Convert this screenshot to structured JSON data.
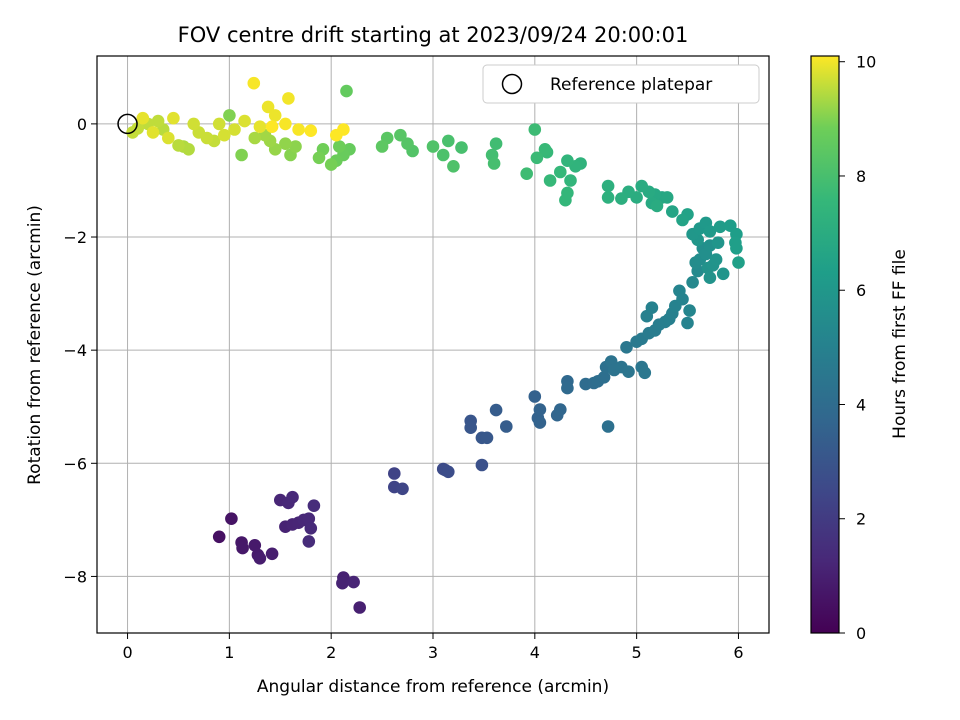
{
  "chart_data": {
    "type": "scatter",
    "title": "FOV centre drift starting at 2023/09/24 20:00:01",
    "xlabel": "Angular distance from reference (arcmin)",
    "ylabel": "Rotation from reference (arcmin)",
    "xlim": [
      -0.3,
      6.3
    ],
    "ylim": [
      -9.0,
      1.2
    ],
    "x_ticks": [
      0,
      1,
      2,
      3,
      4,
      5,
      6
    ],
    "y_ticks": [
      -8,
      -6,
      -4,
      -2,
      0
    ],
    "grid": true,
    "legend_position": "top-right",
    "legend_entries": [
      "Reference platepar"
    ],
    "colorbar": {
      "label": "Hours from first FF file",
      "range": [
        0,
        10.1
      ],
      "ticks": [
        0,
        2,
        4,
        6,
        8,
        10
      ],
      "colormap": "viridis"
    },
    "reference_point": {
      "x": 0,
      "y": 0
    },
    "series": [
      {
        "color_value": "hours",
        "points": [
          [
            0.9,
            -7.3,
            0.5
          ],
          [
            1.02,
            -6.98,
            0.6
          ],
          [
            1.12,
            -7.4,
            0.7
          ],
          [
            1.13,
            -7.5,
            0.75
          ],
          [
            1.25,
            -7.45,
            0.8
          ],
          [
            1.28,
            -7.62,
            0.85
          ],
          [
            1.3,
            -7.68,
            0.9
          ],
          [
            1.42,
            -7.6,
            0.95
          ],
          [
            1.5,
            -6.65,
            1.2
          ],
          [
            1.58,
            -6.7,
            1.25
          ],
          [
            1.62,
            -6.6,
            1.3
          ],
          [
            1.55,
            -7.12,
            1.1
          ],
          [
            1.62,
            -7.08,
            1.15
          ],
          [
            1.68,
            -7.05,
            1.2
          ],
          [
            1.73,
            -7.0,
            1.25
          ],
          [
            1.78,
            -6.98,
            1.3
          ],
          [
            1.8,
            -7.15,
            1.35
          ],
          [
            1.78,
            -7.38,
            1.4
          ],
          [
            1.83,
            -6.75,
            1.45
          ],
          [
            2.12,
            -8.02,
            1.05
          ],
          [
            2.11,
            -8.12,
            1.1
          ],
          [
            2.22,
            -8.1,
            1.15
          ],
          [
            2.28,
            -8.55,
            1.0
          ],
          [
            2.62,
            -6.18,
            2.3
          ],
          [
            2.62,
            -6.42,
            2.35
          ],
          [
            2.7,
            -6.45,
            2.4
          ],
          [
            3.1,
            -6.1,
            2.6
          ],
          [
            3.12,
            -6.12,
            2.65
          ],
          [
            3.15,
            -6.15,
            2.7
          ],
          [
            3.48,
            -6.03,
            2.85
          ],
          [
            3.37,
            -5.25,
            3.0
          ],
          [
            3.37,
            -5.37,
            3.05
          ],
          [
            3.48,
            -5.55,
            3.1
          ],
          [
            3.53,
            -5.55,
            3.15
          ],
          [
            3.62,
            -5.06,
            3.3
          ],
          [
            3.72,
            -5.35,
            3.35
          ],
          [
            4.0,
            -4.82,
            3.5
          ],
          [
            4.03,
            -5.2,
            3.55
          ],
          [
            4.05,
            -5.28,
            3.6
          ],
          [
            4.05,
            -5.05,
            3.6
          ],
          [
            4.22,
            -5.15,
            3.7
          ],
          [
            4.25,
            -5.05,
            3.75
          ],
          [
            4.32,
            -4.55,
            3.85
          ],
          [
            4.32,
            -4.67,
            3.9
          ],
          [
            4.5,
            -4.6,
            4.0
          ],
          [
            4.58,
            -4.58,
            4.05
          ],
          [
            4.62,
            -4.55,
            4.1
          ],
          [
            4.68,
            -4.48,
            4.15
          ],
          [
            4.7,
            -4.3,
            4.2
          ],
          [
            4.72,
            -5.35,
            4.2
          ],
          [
            4.75,
            -4.2,
            4.3
          ],
          [
            4.78,
            -4.35,
            4.3
          ],
          [
            4.85,
            -4.3,
            4.35
          ],
          [
            4.92,
            -4.38,
            4.4
          ],
          [
            5.05,
            -4.3,
            4.45
          ],
          [
            5.08,
            -4.4,
            4.5
          ],
          [
            4.9,
            -3.95,
            4.5
          ],
          [
            5.0,
            -3.85,
            4.6
          ],
          [
            5.05,
            -3.8,
            4.65
          ],
          [
            5.12,
            -3.7,
            4.7
          ],
          [
            5.18,
            -3.65,
            4.75
          ],
          [
            5.22,
            -3.55,
            4.8
          ],
          [
            5.28,
            -3.5,
            4.85
          ],
          [
            5.32,
            -3.45,
            4.9
          ],
          [
            5.35,
            -3.35,
            4.95
          ],
          [
            5.1,
            -3.4,
            4.95
          ],
          [
            5.15,
            -3.25,
            5.0
          ],
          [
            5.38,
            -3.22,
            5.05
          ],
          [
            5.45,
            -3.1,
            5.1
          ],
          [
            5.42,
            -2.95,
            5.15
          ],
          [
            5.5,
            -3.52,
            5.1
          ],
          [
            5.52,
            -3.3,
            5.2
          ],
          [
            5.55,
            -2.8,
            5.3
          ],
          [
            5.6,
            -2.6,
            5.4
          ],
          [
            5.58,
            -2.45,
            5.5
          ],
          [
            5.62,
            -2.4,
            5.55
          ],
          [
            5.65,
            -2.2,
            5.6
          ],
          [
            5.68,
            -2.3,
            5.65
          ],
          [
            5.72,
            -2.15,
            5.7
          ],
          [
            5.7,
            -2.55,
            5.75
          ],
          [
            5.75,
            -2.5,
            5.8
          ],
          [
            5.72,
            -2.72,
            5.8
          ],
          [
            5.78,
            -2.4,
            5.85
          ],
          [
            5.8,
            -2.1,
            5.9
          ],
          [
            5.85,
            -2.65,
            5.9
          ],
          [
            5.6,
            -2.05,
            5.95
          ],
          [
            5.55,
            -1.95,
            6.0
          ],
          [
            5.62,
            -1.85,
            6.05
          ],
          [
            5.68,
            -1.75,
            6.1
          ],
          [
            5.72,
            -1.9,
            6.15
          ],
          [
            5.82,
            -1.82,
            6.2
          ],
          [
            5.92,
            -1.8,
            6.25
          ],
          [
            5.98,
            -1.95,
            6.3
          ],
          [
            5.97,
            -2.1,
            6.35
          ],
          [
            5.98,
            -2.2,
            6.35
          ],
          [
            6.0,
            -2.45,
            6.4
          ],
          [
            5.5,
            -1.6,
            6.5
          ],
          [
            5.45,
            -1.7,
            6.55
          ],
          [
            5.35,
            -1.55,
            6.6
          ],
          [
            5.25,
            -1.3,
            6.7
          ],
          [
            5.3,
            -1.3,
            6.75
          ],
          [
            5.18,
            -1.25,
            6.8
          ],
          [
            5.15,
            -1.4,
            6.85
          ],
          [
            5.12,
            -1.2,
            6.9
          ],
          [
            5.05,
            -1.1,
            6.95
          ],
          [
            5.0,
            -1.3,
            7.0
          ],
          [
            4.92,
            -1.2,
            7.05
          ],
          [
            4.85,
            -1.32,
            7.1
          ],
          [
            4.72,
            -1.1,
            7.15
          ],
          [
            4.72,
            -1.3,
            7.2
          ],
          [
            5.2,
            -1.45,
            6.95
          ],
          [
            4.45,
            -0.7,
            7.3
          ],
          [
            4.4,
            -0.75,
            7.35
          ],
          [
            4.32,
            -0.65,
            7.4
          ],
          [
            4.35,
            -1.0,
            7.45
          ],
          [
            4.3,
            -1.35,
            7.5
          ],
          [
            4.32,
            -1.22,
            7.5
          ],
          [
            4.25,
            -0.85,
            7.55
          ],
          [
            4.15,
            -1.0,
            7.6
          ],
          [
            4.12,
            -0.5,
            7.6
          ],
          [
            4.1,
            -0.45,
            7.65
          ],
          [
            4.02,
            -0.6,
            7.7
          ],
          [
            4.0,
            -0.1,
            7.75
          ],
          [
            3.92,
            -0.88,
            7.8
          ],
          [
            3.62,
            -0.35,
            7.85
          ],
          [
            3.58,
            -0.55,
            7.9
          ],
          [
            3.6,
            -0.7,
            7.95
          ],
          [
            3.28,
            -0.42,
            8.0
          ],
          [
            3.15,
            -0.3,
            8.05
          ],
          [
            3.1,
            -0.55,
            8.1
          ],
          [
            3.2,
            -0.75,
            8.15
          ],
          [
            3.0,
            -0.4,
            8.2
          ],
          [
            2.8,
            -0.48,
            8.25
          ],
          [
            2.75,
            -0.35,
            8.3
          ],
          [
            2.68,
            -0.2,
            8.35
          ],
          [
            2.55,
            -0.25,
            8.4
          ],
          [
            2.5,
            -0.4,
            8.45
          ],
          [
            2.15,
            0.58,
            8.6
          ],
          [
            2.18,
            -0.45,
            8.65
          ],
          [
            2.12,
            -0.55,
            8.7
          ],
          [
            2.05,
            -0.65,
            8.75
          ],
          [
            2.08,
            -0.4,
            8.8
          ],
          [
            1.92,
            -0.45,
            8.85
          ],
          [
            1.88,
            -0.6,
            8.9
          ],
          [
            2.0,
            -0.72,
            8.9
          ],
          [
            1.12,
            -0.55,
            9.0
          ],
          [
            1.0,
            0.15,
            9.0
          ],
          [
            1.6,
            -0.55,
            9.05
          ],
          [
            1.65,
            -0.4,
            9.1
          ],
          [
            1.55,
            -0.35,
            9.15
          ],
          [
            1.45,
            -0.45,
            9.2
          ],
          [
            1.4,
            -0.3,
            9.25
          ],
          [
            1.35,
            -0.2,
            9.3
          ],
          [
            1.25,
            -0.25,
            9.35
          ],
          [
            0.55,
            -0.4,
            9.4
          ],
          [
            0.6,
            -0.45,
            9.45
          ],
          [
            0.5,
            -0.38,
            9.5
          ],
          [
            0.35,
            -0.1,
            9.5
          ],
          [
            0.3,
            0.05,
            9.55
          ],
          [
            0.2,
            0.0,
            9.55
          ],
          [
            0.1,
            -0.08,
            9.6
          ],
          [
            0.05,
            -0.15,
            9.6
          ],
          [
            0.85,
            -0.3,
            9.6
          ],
          [
            0.78,
            -0.25,
            9.65
          ],
          [
            0.7,
            -0.15,
            9.65
          ],
          [
            0.65,
            0.0,
            9.7
          ],
          [
            0.9,
            0.0,
            9.7
          ],
          [
            0.95,
            -0.2,
            9.75
          ],
          [
            1.05,
            -0.1,
            9.75
          ],
          [
            1.15,
            0.05,
            9.8
          ],
          [
            0.4,
            -0.25,
            9.8
          ],
          [
            0.45,
            0.1,
            9.85
          ],
          [
            0.25,
            -0.15,
            9.85
          ],
          [
            0.15,
            0.1,
            9.9
          ],
          [
            1.3,
            -0.05,
            9.9
          ],
          [
            1.38,
            0.3,
            9.95
          ],
          [
            1.45,
            0.15,
            9.95
          ],
          [
            1.58,
            0.45,
            10.0
          ],
          [
            1.24,
            0.72,
            10.05
          ],
          [
            1.55,
            0.0,
            10.05
          ],
          [
            1.68,
            -0.1,
            10.05
          ],
          [
            1.42,
            -0.05,
            10.1
          ],
          [
            2.05,
            -0.2,
            10.1
          ],
          [
            2.12,
            -0.1,
            10.1
          ],
          [
            1.8,
            -0.12,
            10.1
          ]
        ]
      }
    ]
  }
}
